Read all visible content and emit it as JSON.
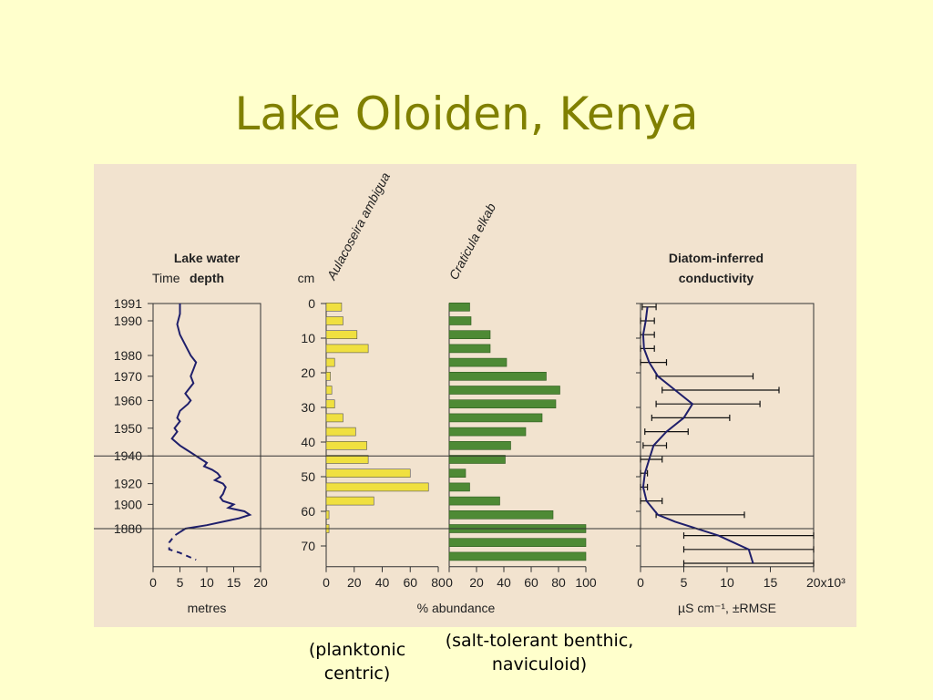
{
  "slide": {
    "title": "Lake Oloiden, Kenya",
    "captions": {
      "planktonic": "(planktonic centric)",
      "benthic": "(salt-tolerant benthic, naviculoid)"
    }
  },
  "colors": {
    "background": "#ffffcc",
    "title": "#808000",
    "figure_bg": "#f2e3cf",
    "line": "#1f1f6b",
    "aulacoseira": "#f0e040",
    "craticula": "#4e8a35"
  },
  "chart_data": [
    {
      "type": "line",
      "title": "Lake water depth",
      "time_label": "Time",
      "xlabel": "metres",
      "xlim": [
        0,
        20
      ],
      "xticks": [
        "0",
        "5",
        "10",
        "15",
        "20"
      ],
      "time_ticks": [
        {
          "label": "1991",
          "depth_cm": 0
        },
        {
          "label": "1990",
          "depth_cm": 5
        },
        {
          "label": "1980",
          "depth_cm": 15
        },
        {
          "label": "1970",
          "depth_cm": 21
        },
        {
          "label": "1960",
          "depth_cm": 28
        },
        {
          "label": "1950",
          "depth_cm": 36
        },
        {
          "label": "1940",
          "depth_cm": 44
        },
        {
          "label": "1920",
          "depth_cm": 52
        },
        {
          "label": "1900",
          "depth_cm": 58
        },
        {
          "label": "1880",
          "depth_cm": 65
        }
      ],
      "series": [
        {
          "points": [
            [
              5,
              0
            ],
            [
              5,
              3
            ],
            [
              4.5,
              6
            ],
            [
              5,
              9
            ],
            [
              6,
              12
            ],
            [
              7,
              15
            ],
            [
              8,
              17
            ],
            [
              7.5,
              19
            ],
            [
              7,
              21
            ],
            [
              7.5,
              23
            ],
            [
              6.5,
              25
            ],
            [
              6,
              26
            ],
            [
              7,
              28
            ],
            [
              6.5,
              29
            ],
            [
              5,
              31
            ],
            [
              4.5,
              33
            ],
            [
              5,
              34
            ],
            [
              4,
              36
            ],
            [
              4.5,
              37
            ],
            [
              3.5,
              39
            ],
            [
              5,
              41
            ],
            [
              6,
              42
            ],
            [
              7,
              43
            ],
            [
              8,
              44
            ],
            [
              9,
              45
            ],
            [
              10,
              46
            ],
            [
              9.5,
              47
            ],
            [
              11,
              48
            ],
            [
              12,
              49
            ],
            [
              12.5,
              50
            ],
            [
              11.5,
              51
            ],
            [
              13,
              52
            ],
            [
              13.5,
              53
            ],
            [
              13,
              55
            ],
            [
              12.5,
              56
            ],
            [
              13,
              57
            ],
            [
              15,
              58
            ],
            [
              14,
              59
            ],
            [
              17,
              60
            ],
            [
              18,
              61
            ],
            [
              16,
              62
            ],
            [
              10,
              64
            ],
            [
              6,
              65
            ],
            [
              5,
              66
            ]
          ]
        },
        {
          "dashed": true,
          "points": [
            [
              5,
              66
            ],
            [
              4,
              67
            ],
            [
              3,
              69
            ],
            [
              3,
              71
            ],
            [
              5,
              72
            ],
            [
              8,
              74
            ]
          ]
        }
      ]
    },
    {
      "type": "bar",
      "title": "Aulacoseira ambigua",
      "ylabel": "cm",
      "ylim": [
        0,
        76
      ],
      "yticks": [
        "0",
        "10",
        "20",
        "30",
        "40",
        "50",
        "60",
        "70"
      ],
      "xlim": [
        0,
        80
      ],
      "xticks": [
        "0",
        "20",
        "40",
        "60",
        "80"
      ],
      "depths": [
        1,
        5,
        9,
        13,
        17,
        21,
        25,
        29,
        33,
        37,
        41,
        45,
        49,
        53,
        57,
        61,
        65
      ],
      "values": [
        11,
        12,
        22,
        30,
        6,
        3,
        4,
        6,
        12,
        21,
        29,
        30,
        60,
        73,
        34,
        2,
        2
      ]
    },
    {
      "type": "bar",
      "title": "Craticula elkab",
      "xlabel": "% abundance",
      "xlim": [
        0,
        100
      ],
      "xticks": [
        "0",
        "20",
        "40",
        "60",
        "80",
        "100"
      ],
      "depths": [
        1,
        5,
        9,
        13,
        17,
        21,
        25,
        29,
        33,
        37,
        41,
        45,
        49,
        53,
        57,
        61,
        65,
        69,
        73
      ],
      "values": [
        15,
        16,
        30,
        30,
        42,
        71,
        81,
        78,
        68,
        56,
        45,
        41,
        12,
        15,
        37,
        76,
        100,
        100,
        100
      ]
    },
    {
      "type": "line",
      "title": "Diatom-inferred conductivity",
      "xlabel": "µS cm⁻¹, ±RMSE",
      "xlim": [
        0,
        20
      ],
      "xticks": [
        "0",
        "5",
        "10",
        "15",
        "20x10³"
      ],
      "series": [
        {
          "points": [
            [
              0.8,
              1
            ],
            [
              0.6,
              5
            ],
            [
              0.3,
              9
            ],
            [
              0.4,
              13
            ],
            [
              1,
              17
            ],
            [
              2,
              21
            ],
            [
              4,
              25
            ],
            [
              6,
              29
            ],
            [
              5,
              33
            ],
            [
              3,
              37
            ],
            [
              1.5,
              41
            ],
            [
              1,
              45
            ],
            [
              0.5,
              49
            ],
            [
              0.3,
              53
            ],
            [
              0.7,
              57
            ],
            [
              2,
              61
            ],
            [
              4,
              63
            ],
            [
              9,
              67
            ],
            [
              12.5,
              71
            ],
            [
              13,
              75
            ]
          ],
          "errors": [
            [
              0.8,
              1,
              0.2,
              1.8
            ],
            [
              0.6,
              5,
              -0.4,
              1.6
            ],
            [
              0.3,
              9,
              -0.7,
              1.6
            ],
            [
              0.4,
              13,
              -0.6,
              1.6
            ],
            [
              1,
              17,
              0,
              3
            ],
            [
              2,
              21,
              1.8,
              13
            ],
            [
              4,
              25,
              2.5,
              16
            ],
            [
              6,
              29,
              1.8,
              13.8
            ],
            [
              5,
              33,
              1.3,
              10.3
            ],
            [
              3,
              37,
              0.5,
              5.5
            ],
            [
              1.5,
              41,
              0.3,
              3
            ],
            [
              1,
              45,
              0,
              2.5
            ],
            [
              0.5,
              49,
              -0.2,
              0.8
            ],
            [
              0.3,
              53,
              -0.2,
              0.8
            ],
            [
              0.7,
              57,
              0,
              2.5
            ],
            [
              2,
              61,
              1.8,
              12
            ],
            [
              9,
              67,
              5,
              20
            ],
            [
              12.5,
              71,
              5,
              20
            ],
            [
              13,
              75,
              5,
              20
            ]
          ]
        }
      ]
    }
  ]
}
